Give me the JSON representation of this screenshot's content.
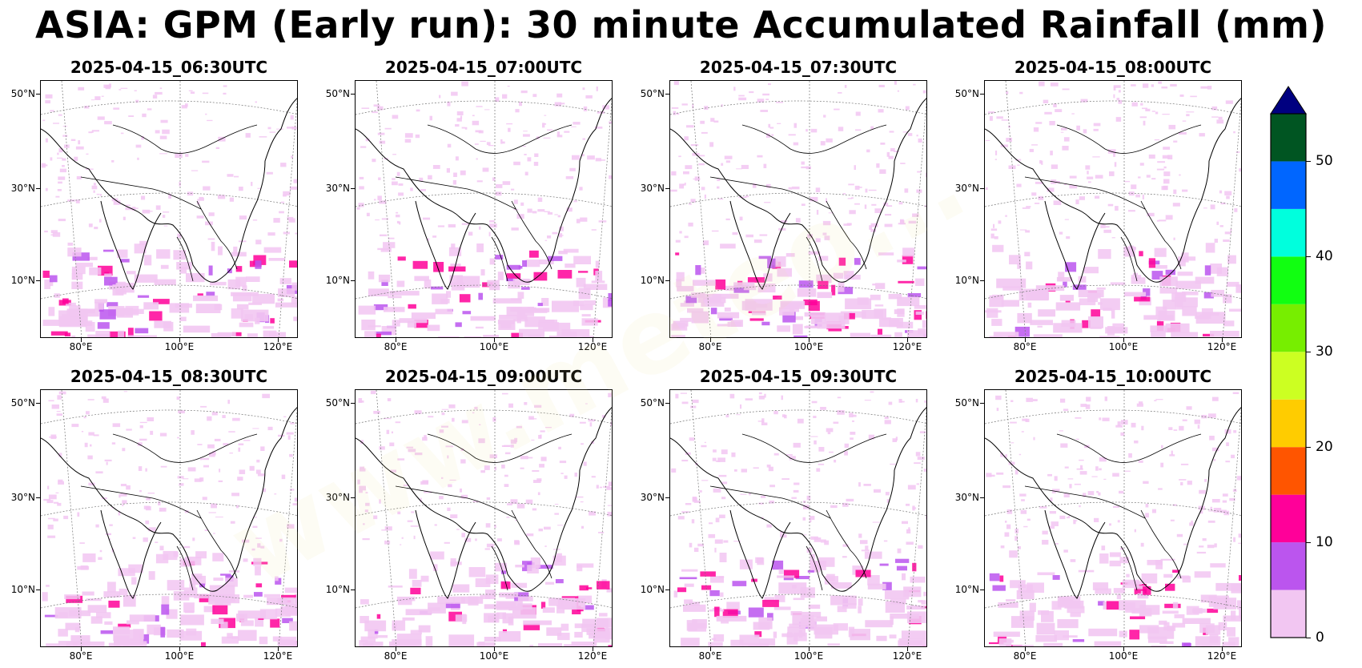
{
  "title": "ASIA: GPM (Early run): 30 minute Accumulated Rainfall (mm)",
  "panels": [
    {
      "time": "2025-04-15_06:30UTC"
    },
    {
      "time": "2025-04-15_07:00UTC"
    },
    {
      "time": "2025-04-15_07:30UTC"
    },
    {
      "time": "2025-04-15_08:00UTC"
    },
    {
      "time": "2025-04-15_08:30UTC"
    },
    {
      "time": "2025-04-15_09:00UTC"
    },
    {
      "time": "2025-04-15_09:30UTC"
    },
    {
      "time": "2025-04-15_10:00UTC"
    }
  ],
  "axes": {
    "lat_labels": [
      "50°N",
      "30°N",
      "10°N"
    ],
    "lon_labels": [
      "80°E",
      "100°E",
      "120°E"
    ]
  },
  "colorbar": {
    "ticks": [
      "0",
      "10",
      "20",
      "30",
      "40",
      "50"
    ],
    "levels": [
      {
        "min": 0,
        "max": 5,
        "color": "#f2c6f2"
      },
      {
        "min": 5,
        "max": 10,
        "color": "#bb55ee"
      },
      {
        "min": 10,
        "max": 15,
        "color": "#ff0099"
      },
      {
        "min": 15,
        "max": 20,
        "color": "#ff5500"
      },
      {
        "min": 20,
        "max": 25,
        "color": "#ffcc00"
      },
      {
        "min": 25,
        "max": 30,
        "color": "#ccff22"
      },
      {
        "min": 30,
        "max": 35,
        "color": "#77ee00"
      },
      {
        "min": 35,
        "max": 40,
        "color": "#11ff11"
      },
      {
        "min": 40,
        "max": 45,
        "color": "#00ffdd"
      },
      {
        "min": 45,
        "max": 50,
        "color": "#0066ff"
      },
      {
        "min": 50,
        "max": 55,
        "color": "#005522"
      }
    ],
    "extend_color": "#000080"
  }
}
